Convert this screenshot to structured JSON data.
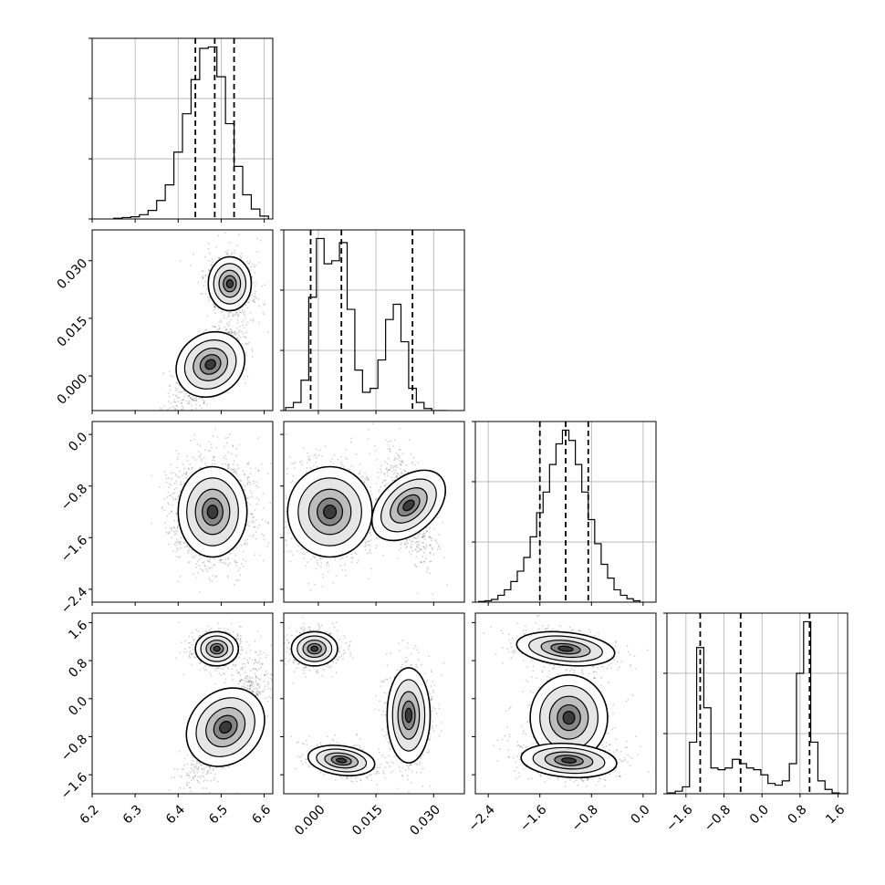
{
  "chart_data": {
    "type": "corner",
    "title": "",
    "parameters": [
      {
        "range": [
          6.2,
          6.62
        ],
        "ticks": [
          "6.2",
          "6.3",
          "6.4",
          "6.5",
          "6.6"
        ],
        "tick_values": [
          6.2,
          6.3,
          6.4,
          6.5,
          6.6
        ],
        "quantiles": [
          6.44,
          6.485,
          6.53
        ]
      },
      {
        "range": [
          -0.009,
          0.038
        ],
        "ticks": [
          "0.000",
          "0.015",
          "0.030"
        ],
        "tick_values": [
          0.0,
          0.015,
          0.03
        ],
        "quantiles": [
          -0.002,
          0.006,
          0.0245
        ]
      },
      {
        "range": [
          -2.6,
          0.2
        ],
        "ticks": [
          "−2.4",
          "−1.6",
          "−0.8",
          "0.0"
        ],
        "tick_values": [
          -2.4,
          -1.6,
          -0.8,
          0.0
        ],
        "quantiles": [
          -1.6,
          -1.2,
          -0.85
        ]
      },
      {
        "range": [
          -2.0,
          1.8
        ],
        "ticks": [
          "−1.6",
          "−0.8",
          "0.0",
          "0.8",
          "1.6"
        ],
        "tick_values": [
          -1.6,
          -0.8,
          0.0,
          0.8,
          1.6
        ],
        "quantiles": [
          -1.3,
          -0.45,
          1.0
        ]
      }
    ],
    "histograms": [
      {
        "bin_centers": [
          6.26,
          6.28,
          6.3,
          6.32,
          6.34,
          6.36,
          6.38,
          6.4,
          6.42,
          6.44,
          6.46,
          6.48,
          6.5,
          6.52,
          6.54,
          6.56,
          6.58,
          6.6
        ],
        "values": [
          1,
          2,
          3,
          6,
          12,
          26,
          48,
          94,
          148,
          196,
          240,
          242,
          200,
          134,
          74,
          34,
          14,
          4
        ]
      },
      {
        "bin_centers": [
          -0.0075,
          -0.0055,
          -0.0035,
          -0.0015,
          0.0005,
          0.0025,
          0.0045,
          0.0065,
          0.0085,
          0.0105,
          0.0125,
          0.0145,
          0.0165,
          0.0185,
          0.0205,
          0.0225,
          0.0245,
          0.0265,
          0.0285,
          0.0305,
          0.0325
        ],
        "values": [
          3,
          8,
          30,
          112,
          170,
          145,
          148,
          166,
          100,
          40,
          18,
          22,
          50,
          90,
          105,
          68,
          22,
          8,
          2,
          0,
          0
        ]
      },
      {
        "bin_centers": [
          -2.5,
          -2.4,
          -2.3,
          -2.2,
          -2.1,
          -2.0,
          -1.9,
          -1.8,
          -1.7,
          -1.6,
          -1.5,
          -1.4,
          -1.3,
          -1.2,
          -1.1,
          -1.0,
          -0.9,
          -0.8,
          -0.7,
          -0.6,
          -0.5,
          -0.4,
          -0.3,
          -0.2,
          -0.1
        ],
        "values": [
          1,
          2,
          4,
          10,
          18,
          30,
          45,
          65,
          95,
          130,
          160,
          200,
          230,
          250,
          235,
          200,
          160,
          120,
          85,
          55,
          35,
          18,
          10,
          5,
          2
        ]
      },
      {
        "bin_centers": [
          -1.9,
          -1.75,
          -1.6,
          -1.45,
          -1.3,
          -1.15,
          -1.0,
          -0.85,
          -0.7,
          -0.55,
          -0.4,
          -0.25,
          -0.1,
          0.05,
          0.2,
          0.35,
          0.5,
          0.65,
          0.8,
          0.95,
          1.1,
          1.25,
          1.4,
          1.55,
          1.7
        ],
        "values": [
          1,
          3,
          8,
          60,
          170,
          100,
          30,
          28,
          30,
          40,
          35,
          30,
          28,
          22,
          12,
          10,
          15,
          35,
          140,
          200,
          60,
          15,
          5,
          1,
          0
        ]
      }
    ],
    "joint_clusters": {
      "1-0": [
        {
          "cx": 6.52,
          "cy": 0.024,
          "sx": 0.025,
          "sy": 0.0035,
          "rho": 0.0,
          "w": 0.35
        },
        {
          "cx": 6.475,
          "cy": 0.003,
          "sx": 0.035,
          "sy": 0.005,
          "rho": 0.65,
          "w": 0.65
        }
      ],
      "2-0": [
        {
          "cx": 6.48,
          "cy": -1.2,
          "sx": 0.04,
          "sy": 0.35,
          "rho": 0.0,
          "w": 1.0
        }
      ],
      "2-1": [
        {
          "cx": 0.003,
          "cy": -1.2,
          "sx": 0.0055,
          "sy": 0.35,
          "rho": 0.0,
          "w": 0.65
        },
        {
          "cx": 0.0235,
          "cy": -1.1,
          "sx": 0.003,
          "sy": 0.4,
          "rho": -0.6,
          "w": 0.35
        }
      ],
      "3-0": [
        {
          "cx": 6.49,
          "cy": 1.05,
          "sx": 0.025,
          "sy": 0.18,
          "rho": 0.0,
          "w": 0.35
        },
        {
          "cx": 6.51,
          "cy": -0.6,
          "sx": 0.04,
          "sy": 0.55,
          "rho": 0.8,
          "w": 0.65
        }
      ],
      "3-1": [
        {
          "cx": -0.001,
          "cy": 1.05,
          "sx": 0.003,
          "sy": 0.18,
          "rho": 0.0,
          "w": 0.35
        },
        {
          "cx": 0.0235,
          "cy": -0.35,
          "sx": 0.0028,
          "sy": 0.5,
          "rho": 0.0,
          "w": 0.35
        },
        {
          "cx": 0.006,
          "cy": -1.3,
          "sx": 0.004,
          "sy": 0.16,
          "rho": -0.3,
          "w": 0.3
        }
      ],
      "3-2": [
        {
          "cx": -1.2,
          "cy": 1.05,
          "sx": 0.35,
          "sy": 0.18,
          "rho": -0.3,
          "w": 0.35
        },
        {
          "cx": -1.15,
          "cy": -0.4,
          "sx": 0.3,
          "sy": 0.45,
          "rho": 0.0,
          "w": 0.25
        },
        {
          "cx": -1.15,
          "cy": -1.3,
          "sx": 0.35,
          "sy": 0.18,
          "rho": -0.2,
          "w": 0.4
        }
      ]
    }
  }
}
